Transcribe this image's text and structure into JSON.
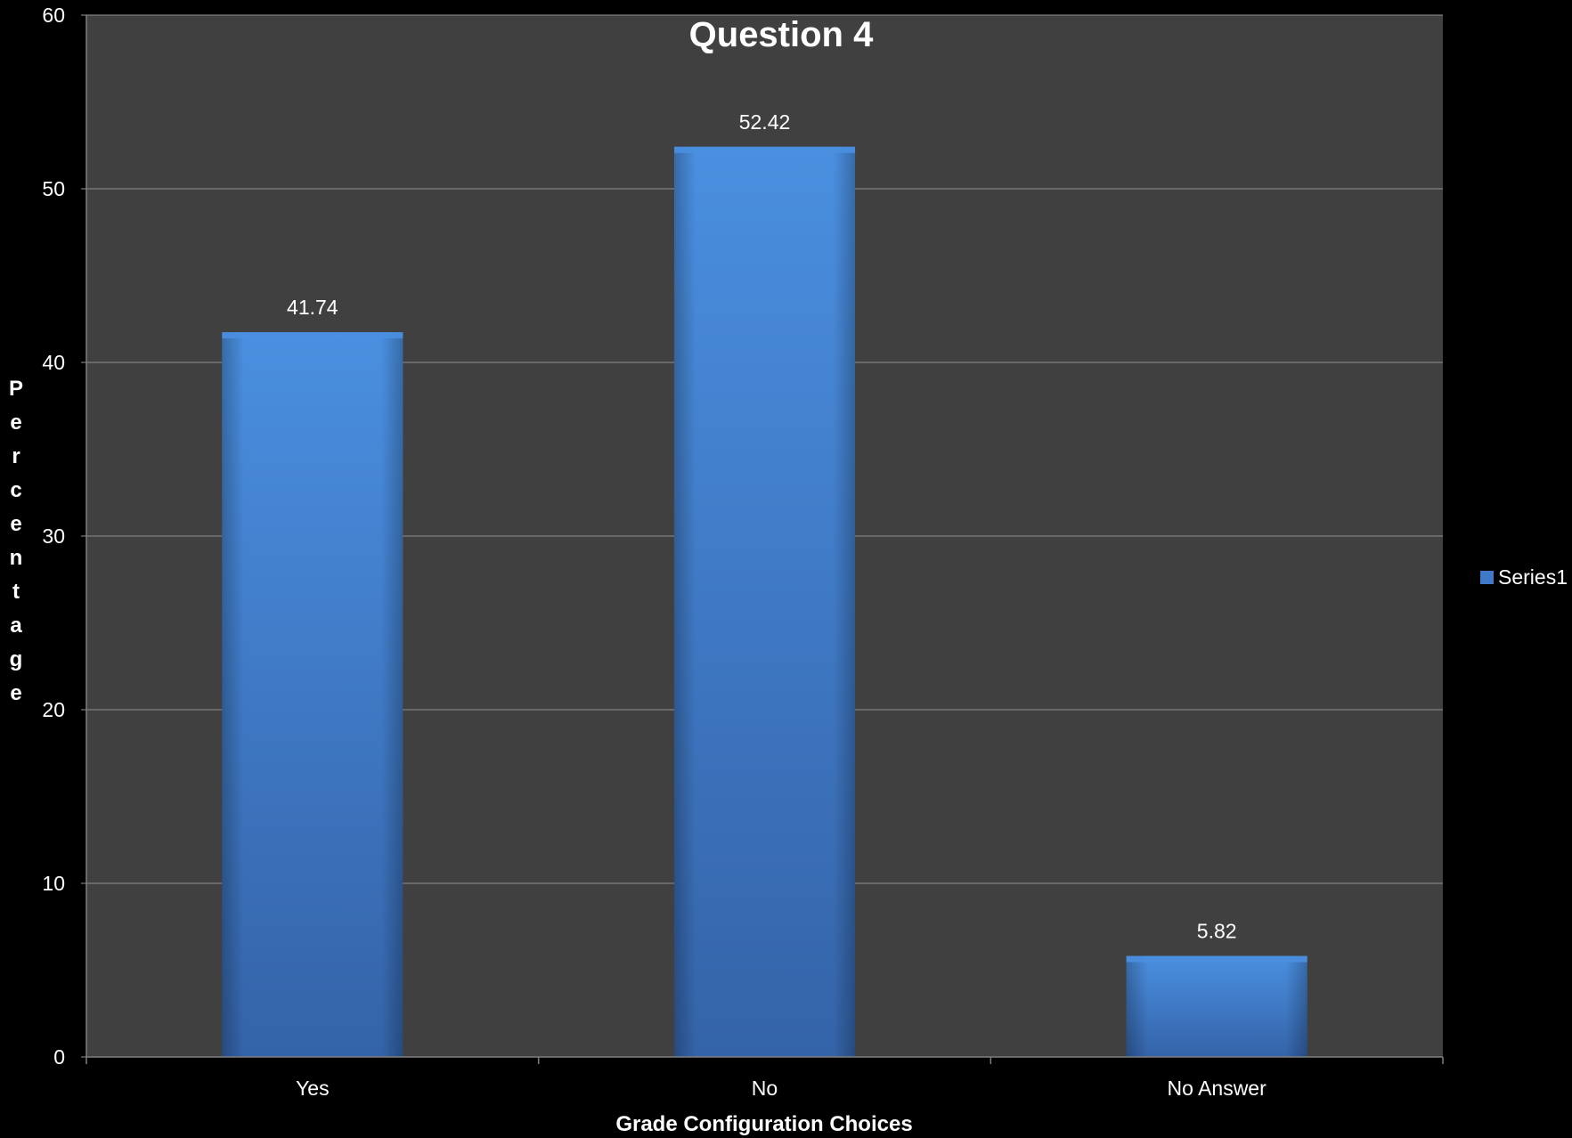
{
  "chart_data": {
    "type": "bar",
    "title": "Question 4",
    "xlabel": "Grade Configuration Choices",
    "ylabel": "Percentage",
    "categories": [
      "Yes",
      "No",
      "No Answer"
    ],
    "series": [
      {
        "name": "Series1",
        "values": [
          41.74,
          52.42,
          5.82
        ]
      }
    ],
    "ylim": [
      0,
      60
    ],
    "yticks": [
      0,
      10,
      20,
      30,
      40,
      50,
      60
    ],
    "grid": true,
    "legend_position": "right",
    "colors": {
      "page_background": "#000000",
      "plot_background": "#404040",
      "bar_light": "#4a8fe0",
      "bar_mid": "#3f7ac9",
      "bar_dark": "#3463a8",
      "gridline": "#808080",
      "text": "#ffffff"
    }
  }
}
